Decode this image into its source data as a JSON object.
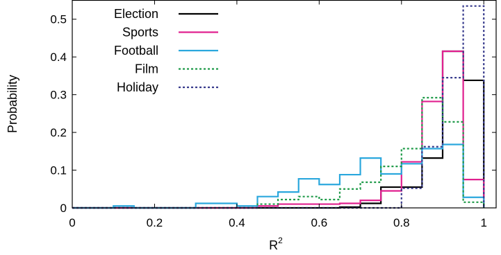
{
  "chart_data": {
    "type": "histogram",
    "xlabel": "R",
    "xlabel_superscript": "2",
    "ylabel": "Probability",
    "xlim": [
      0,
      1.03
    ],
    "ylim": [
      0,
      0.55
    ],
    "bin_edges": [
      0,
      0.05,
      0.1,
      0.15,
      0.2,
      0.25,
      0.3,
      0.35,
      0.4,
      0.45,
      0.5,
      0.55,
      0.6,
      0.65,
      0.7,
      0.75,
      0.8,
      0.85,
      0.9,
      0.95,
      1.0
    ],
    "xticks": [
      {
        "value": 0,
        "label": "0"
      },
      {
        "value": 0.2,
        "label": "0.2"
      },
      {
        "value": 0.4,
        "label": "0.4"
      },
      {
        "value": 0.6,
        "label": "0.6"
      },
      {
        "value": 0.8,
        "label": "0.8"
      },
      {
        "value": 1.0,
        "label": "1"
      }
    ],
    "yticks": [
      {
        "value": 0,
        "label": "0"
      },
      {
        "value": 0.1,
        "label": "0.1"
      },
      {
        "value": 0.2,
        "label": "0.2"
      },
      {
        "value": 0.3,
        "label": "0.3"
      },
      {
        "value": 0.4,
        "label": "0.4"
      },
      {
        "value": 0.5,
        "label": "0.5"
      }
    ],
    "legend_position": "top-left",
    "grid": false,
    "series": [
      {
        "name": "Election",
        "color": "#000000",
        "dash": "solid",
        "values": [
          0,
          0,
          0,
          0,
          0,
          0,
          0,
          0,
          0,
          0,
          0,
          0,
          0,
          0.002,
          0.012,
          0.055,
          0.055,
          0.132,
          0.415,
          0.338
        ]
      },
      {
        "name": "Sports",
        "color": "#e0208f",
        "dash": "solid",
        "values": [
          0,
          0,
          0,
          0,
          0,
          0,
          0,
          0,
          0,
          0.005,
          0.01,
          0.01,
          0.01,
          0.012,
          0.02,
          0.045,
          0.122,
          0.282,
          0.415,
          0.075
        ]
      },
      {
        "name": "Football",
        "color": "#2aa7dd",
        "dash": "solid",
        "values": [
          0,
          0,
          0.005,
          0,
          0,
          0,
          0.012,
          0.012,
          0.005,
          0.03,
          0.042,
          0.077,
          0.062,
          0.088,
          0.132,
          0.09,
          0.117,
          0.157,
          0.168,
          0.028
        ]
      },
      {
        "name": "Film",
        "color": "#1e9a48",
        "dash": "dotted",
        "values": [
          0,
          0,
          0,
          0,
          0,
          0,
          0,
          0,
          0,
          0.01,
          0.022,
          0.03,
          0.022,
          0.05,
          0.068,
          0.11,
          0.157,
          0.292,
          0.228,
          0.015
        ]
      },
      {
        "name": "Holiday",
        "color": "#373a8c",
        "dash": "dotted",
        "values": [
          0,
          0,
          0,
          0,
          0,
          0,
          0,
          0,
          0,
          0,
          0,
          0,
          0,
          0,
          0,
          0,
          0.052,
          0.162,
          0.345,
          0.535
        ]
      }
    ]
  }
}
